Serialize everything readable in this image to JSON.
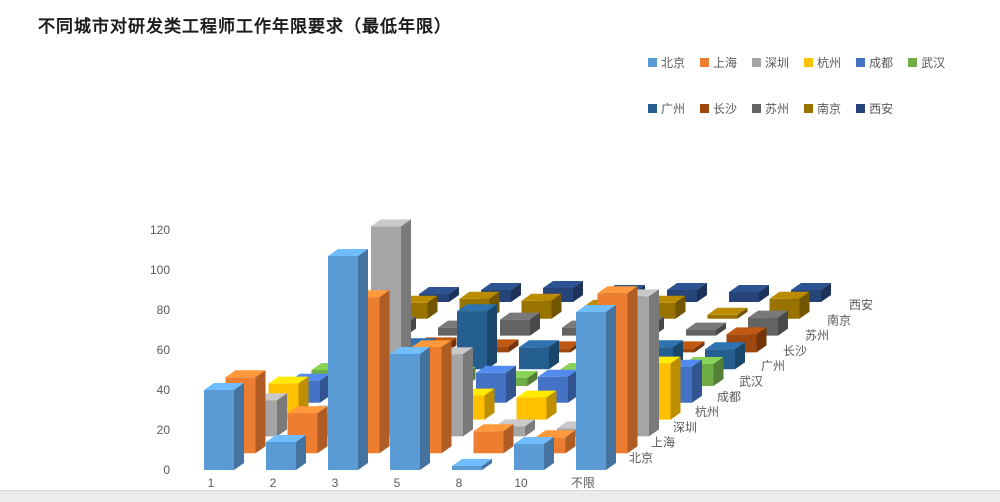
{
  "title": "不同城市对研发类工程师工作年限要求（最低年限）",
  "chart_data": {
    "type": "bar",
    "subtype": "3d-column",
    "title": "不同城市对研发类工程师工作年限要求（最低年限）",
    "categories": [
      "1",
      "2",
      "3",
      "5",
      "8",
      "10",
      "不限"
    ],
    "xlabel": "",
    "ylabel": "",
    "ylim": [
      0,
      120
    ],
    "yticks": [
      0,
      20,
      40,
      60,
      80,
      100,
      120
    ],
    "grid": false,
    "legend_position": "top-right",
    "series": [
      {
        "name": "北京",
        "color": "#5B9BD5",
        "values": [
          40,
          14,
          107,
          58,
          2,
          13,
          79
        ]
      },
      {
        "name": "上海",
        "color": "#ED7D31",
        "values": [
          38,
          20,
          78,
          53,
          11,
          8,
          80
        ]
      },
      {
        "name": "深圳",
        "color": "#A5A5A5",
        "values": [
          18,
          12,
          105,
          41,
          5,
          4,
          70
        ]
      },
      {
        "name": "杭州",
        "color": "#FFC000",
        "values": [
          18,
          17,
          8,
          12,
          11,
          3,
          28
        ]
      },
      {
        "name": "成都",
        "color": "#4472C4",
        "values": [
          11,
          16,
          10,
          15,
          13,
          6,
          18
        ]
      },
      {
        "name": "武汉",
        "color": "#70AD47",
        "values": [
          8,
          10,
          6,
          4,
          8,
          4,
          11
        ]
      },
      {
        "name": "广州",
        "color": "#255E91",
        "values": [
          26,
          12,
          29,
          11,
          8,
          11,
          10
        ]
      },
      {
        "name": "长沙",
        "color": "#9E480E",
        "values": [
          5,
          4,
          3,
          2,
          4,
          2,
          9
        ]
      },
      {
        "name": "苏州",
        "color": "#636363",
        "values": [
          6,
          4,
          8,
          4,
          6,
          3,
          9
        ]
      },
      {
        "name": "南京",
        "color": "#997300",
        "values": [
          8,
          10,
          9,
          6,
          8,
          2,
          10
        ]
      },
      {
        "name": "西安",
        "color": "#264478",
        "values": [
          4,
          6,
          7,
          5,
          6,
          5,
          6
        ]
      }
    ],
    "depth_axis_labels": [
      "北京",
      "上海",
      "深圳",
      "杭州",
      "成都",
      "武汉",
      "广州",
      "长沙",
      "苏州",
      "南京",
      "西安"
    ]
  }
}
